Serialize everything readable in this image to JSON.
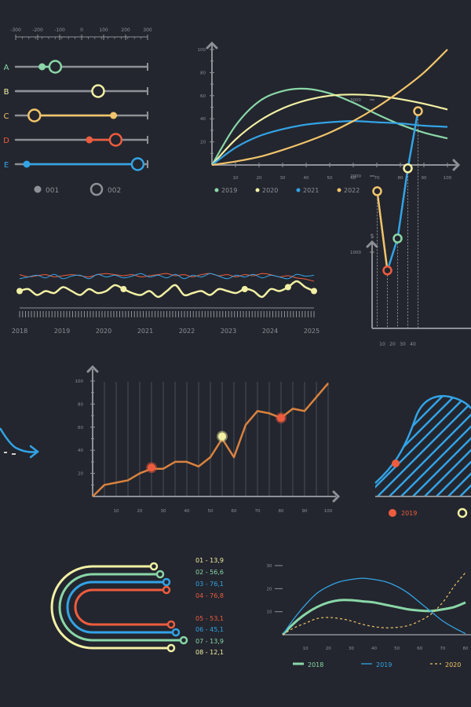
{
  "colors": {
    "background": "#23262e",
    "axis": "#8e9097",
    "text": "#8e9097",
    "green": "#8ad7a8",
    "yellow": "#f2f0a4",
    "blue": "#33a3e6",
    "orange": "#f2c46b",
    "red": "#ee5c3f",
    "copper": "#d9823f",
    "gray": "#8e9097"
  },
  "icons": {
    "arrow": "curved-arrow-icon"
  },
  "chart_data": [
    {
      "id": "sliders",
      "type": "range-slider",
      "scale_ticks": [
        -300,
        -200,
        -100,
        0,
        100,
        200,
        300
      ],
      "rows": [
        {
          "label": "A",
          "color": "#8ad7a8",
          "value_001": -180,
          "value_002": -120
        },
        {
          "label": "B",
          "color": "#f2f0a4",
          "value_001": null,
          "value_002": 75
        },
        {
          "label": "C",
          "color": "#f2c46b",
          "value_001": 145,
          "value_002": -215
        },
        {
          "label": "D",
          "color": "#ee5c3f",
          "value_001": 35,
          "value_002": 155
        },
        {
          "label": "E",
          "color": "#33a3e6",
          "value_001": -250,
          "value_002": 255
        }
      ],
      "legend": [
        {
          "label": "001",
          "marker": "dot"
        },
        {
          "label": "002",
          "marker": "ring"
        }
      ]
    },
    {
      "id": "curves",
      "type": "line",
      "xlim": [
        0,
        100
      ],
      "ylim": [
        0,
        100
      ],
      "xticks": [
        10,
        20,
        30,
        40,
        50,
        60,
        70,
        80,
        90,
        100
      ],
      "yticks": [
        20,
        40,
        60,
        80,
        100
      ],
      "x": [
        0,
        10,
        20,
        30,
        40,
        50,
        60,
        70,
        80,
        90,
        100
      ],
      "series": [
        {
          "name": "2019",
          "color": "#8ad7a8",
          "values": [
            0,
            34,
            55,
            64,
            66,
            62,
            54,
            44,
            35,
            28,
            23
          ]
        },
        {
          "name": "2020",
          "color": "#f2f0a4",
          "values": [
            0,
            22,
            38,
            49,
            56,
            60,
            61,
            60,
            57,
            53,
            48
          ]
        },
        {
          "name": "2021",
          "color": "#33a3e6",
          "values": [
            0,
            15,
            25,
            31,
            35,
            37,
            38,
            37,
            36,
            34,
            33
          ]
        },
        {
          "name": "2022",
          "color": "#f2c46b",
          "values": [
            0,
            3,
            7,
            13,
            20,
            28,
            38,
            50,
            64,
            80,
            100
          ]
        }
      ]
    },
    {
      "id": "timeline",
      "type": "line",
      "x_labels": [
        "2018",
        "2019",
        "2020",
        "2021",
        "2022",
        "2023",
        "2024",
        "2025"
      ],
      "series": [
        {
          "name": "",
          "color": "#f2f0a4",
          "values": [
            0.5,
            0.6,
            0.3,
            0.5,
            0.4,
            0.7,
            0.5,
            0.3,
            0.6,
            0.4,
            0.5,
            0.8,
            0.6,
            0.4,
            0.3,
            0.5,
            0.2,
            0.5,
            0.8,
            0.3,
            0.4,
            0.5,
            0.3,
            0.6,
            0.5,
            0.4,
            0.6,
            0.5,
            0.2,
            0.6,
            0.5,
            0.7,
            1.0,
            0.7,
            0.5
          ],
          "markers": [
            0,
            12,
            26,
            31,
            34
          ]
        },
        {
          "name": "",
          "color": "#ee5c3f",
          "values": [
            0.3,
            0.2,
            0.25,
            0.3,
            0.2,
            0.25,
            0.3,
            0.25,
            0.2,
            0.3,
            0.35,
            0.3,
            0.25,
            0.3,
            0.2,
            0.25,
            0.3,
            0.35,
            0.25,
            0.3,
            0.2,
            0.3,
            0.35,
            0.25,
            0.3,
            0.2,
            0.3,
            0.25,
            0.35,
            0.3,
            0.2,
            0.25,
            0.15,
            0.1,
            0.0
          ]
        },
        {
          "name": "",
          "color": "#33a3e6",
          "values": [
            0.1,
            0.2,
            0.3,
            0.15,
            0.35,
            0.1,
            0.25,
            0.3,
            0.1,
            0.35,
            0.2,
            0.3,
            0.15,
            0.25,
            0.4,
            0.2,
            0.3,
            0.15,
            0.35,
            0.1,
            0.3,
            0.2,
            0.4,
            0.25,
            0.1,
            0.3,
            0.2,
            0.35,
            0.15,
            0.3,
            0.2,
            0.1,
            0.35,
            0.25,
            0.3
          ]
        }
      ]
    },
    {
      "id": "dollar",
      "type": "line",
      "y_unit": "$",
      "yticks": [
        1000,
        2000,
        3000
      ],
      "xticks": [
        10,
        20,
        30,
        40
      ],
      "x": [
        5,
        15,
        25,
        35,
        45
      ],
      "values": [
        1800,
        760,
        1180,
        2100,
        2850
      ],
      "point_colors": [
        "#f2c46b",
        "#ee5c3f",
        "#8ad7a8",
        "#f2f0a4",
        "#f2c46b"
      ]
    },
    {
      "id": "growth",
      "type": "line",
      "color": "#d9823f",
      "xlim": [
        0,
        100
      ],
      "ylim": [
        0,
        100
      ],
      "xticks": [
        10,
        20,
        30,
        40,
        50,
        60,
        70,
        80,
        90,
        100
      ],
      "yticks": [
        20,
        40,
        60,
        80,
        100
      ],
      "x": [
        0,
        5,
        10,
        15,
        20,
        25,
        30,
        35,
        40,
        45,
        50,
        55,
        60,
        65,
        70,
        75,
        80,
        85,
        90,
        95,
        100
      ],
      "values": [
        0,
        10,
        12,
        14,
        20,
        24,
        24,
        30,
        30,
        26,
        34,
        50,
        34,
        62,
        74,
        72,
        68,
        76,
        74,
        86,
        98
      ],
      "highlights": [
        {
          "x": 25,
          "y": 25,
          "color": "#ee5c3f"
        },
        {
          "x": 55,
          "y": 52,
          "color": "#f2f0a4"
        },
        {
          "x": 80,
          "y": 68,
          "color": "#ee5c3f"
        }
      ]
    },
    {
      "id": "hatched",
      "type": "area",
      "color": "#33a3e6",
      "legend": [
        {
          "label": "2019",
          "color": "#ee5c3f",
          "marker": "dot"
        },
        {
          "label": "",
          "color": "#f2f0a4",
          "marker": "ring"
        }
      ]
    },
    {
      "id": "arcs",
      "type": "arc-bars",
      "items": [
        {
          "label": "01 - 13,9",
          "color": "#f2f0a4"
        },
        {
          "label": "02 - 56,6",
          "color": "#8ad7a8"
        },
        {
          "label": "03 - 76,1",
          "color": "#33a3e6"
        },
        {
          "label": "04 - 76,8",
          "color": "#ee5c3f"
        },
        {
          "label": "05 - 53,1",
          "color": "#ee5c3f"
        },
        {
          "label": "06 - 45,1",
          "color": "#33a3e6"
        },
        {
          "label": "07 - 13,9",
          "color": "#8ad7a8"
        },
        {
          "label": "08 - 12,1",
          "color": "#f2f0a4"
        }
      ]
    },
    {
      "id": "waves",
      "type": "line",
      "xlim": [
        0,
        80
      ],
      "ylim": [
        0,
        30
      ],
      "xticks": [
        10,
        20,
        30,
        40,
        50,
        60,
        70,
        80
      ],
      "yticks": [
        10,
        20,
        30
      ],
      "x": [
        0,
        5,
        10,
        15,
        20,
        25,
        30,
        35,
        40,
        45,
        50,
        55,
        60,
        65,
        70,
        75,
        80
      ],
      "series": [
        {
          "name": "2018",
          "color": "#8ad7a8",
          "style": "thick",
          "values": [
            0,
            5,
            9,
            12,
            14,
            15,
            15,
            14.5,
            14,
            13,
            12,
            11,
            10.5,
            10.3,
            11,
            12,
            14
          ]
        },
        {
          "name": "2019",
          "color": "#33a3e6",
          "style": "thin",
          "values": [
            0,
            7,
            13,
            18,
            21,
            23,
            24,
            24.5,
            24,
            23,
            21,
            18,
            14,
            10,
            6,
            3,
            0.5
          ]
        },
        {
          "name": "2020",
          "color": "#f2c46b",
          "style": "dashed",
          "values": [
            0,
            3,
            5,
            7,
            7.5,
            7,
            6,
            4.5,
            3.5,
            3,
            3.2,
            4,
            6,
            9,
            14,
            21,
            27
          ]
        }
      ]
    }
  ]
}
